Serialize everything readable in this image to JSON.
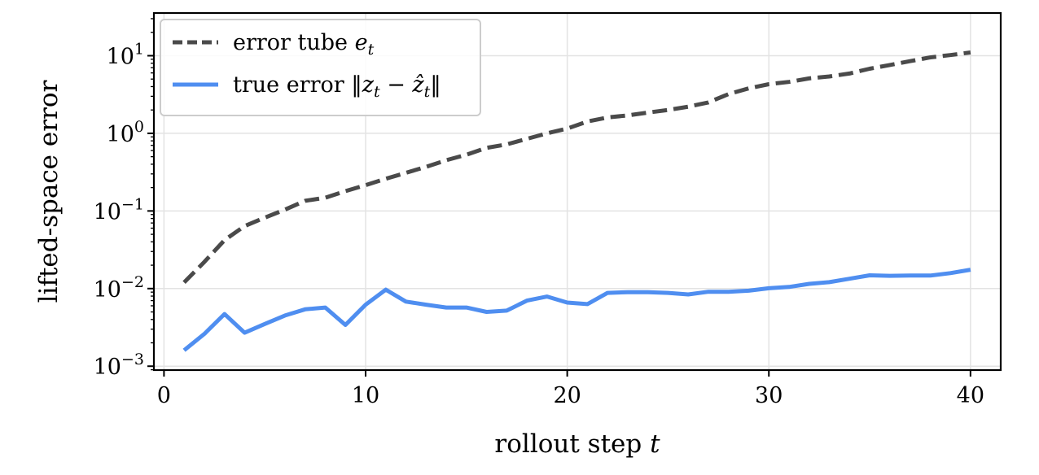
{
  "chart_data": {
    "type": "line",
    "xlabel": "rollout step",
    "xlabel_var": "t",
    "ylabel": "lifted-space error",
    "yscale": "log",
    "xlim": [
      -0.5,
      41.5
    ],
    "ylim_log10": [
      -3.05,
      1.55
    ],
    "grid": true,
    "legend_position": "upper-left",
    "x_ticks": [
      0,
      10,
      20,
      30,
      40
    ],
    "y_ticks": [
      {
        "base": "10",
        "exp": "−3",
        "value": 0.001
      },
      {
        "base": "10",
        "exp": "−2",
        "value": 0.01
      },
      {
        "base": "10",
        "exp": "−1",
        "value": 0.1
      },
      {
        "base": "10",
        "exp": "0",
        "value": 1
      },
      {
        "base": "10",
        "exp": "1",
        "value": 10
      }
    ],
    "x": [
      1,
      2,
      3,
      4,
      5,
      6,
      7,
      8,
      9,
      10,
      11,
      12,
      13,
      14,
      15,
      16,
      17,
      18,
      19,
      20,
      21,
      22,
      23,
      24,
      25,
      26,
      27,
      28,
      29,
      30,
      31,
      32,
      33,
      34,
      35,
      36,
      37,
      38,
      39,
      40
    ],
    "series": [
      {
        "name_parts": [
          "error tube ",
          "e",
          "t"
        ],
        "color": "#4a4a4a",
        "dash": true,
        "values": [
          0.012,
          0.022,
          0.042,
          0.064,
          0.082,
          0.104,
          0.135,
          0.148,
          0.18,
          0.215,
          0.26,
          0.31,
          0.37,
          0.45,
          0.53,
          0.65,
          0.72,
          0.85,
          1.0,
          1.15,
          1.42,
          1.6,
          1.7,
          1.85,
          2.0,
          2.2,
          2.5,
          3.2,
          3.8,
          4.3,
          4.6,
          5.1,
          5.4,
          5.9,
          6.8,
          7.6,
          8.5,
          9.5,
          10.2,
          11.0
        ]
      },
      {
        "name_parts": [
          "true error ",
          "‖",
          "z",
          "t",
          " − ",
          "ẑ",
          "t",
          "‖"
        ],
        "color": "#4f8ef0",
        "dash": false,
        "values": [
          0.0016,
          0.0026,
          0.0047,
          0.0027,
          0.0035,
          0.0045,
          0.0054,
          0.0057,
          0.0034,
          0.0062,
          0.0097,
          0.0068,
          0.0062,
          0.0057,
          0.0057,
          0.005,
          0.0052,
          0.007,
          0.0079,
          0.0066,
          0.0063,
          0.0088,
          0.009,
          0.009,
          0.0088,
          0.0084,
          0.0091,
          0.0091,
          0.0094,
          0.0101,
          0.0105,
          0.0115,
          0.0121,
          0.0134,
          0.0148,
          0.0146,
          0.0147,
          0.0147,
          0.0158,
          0.0175
        ]
      }
    ]
  }
}
